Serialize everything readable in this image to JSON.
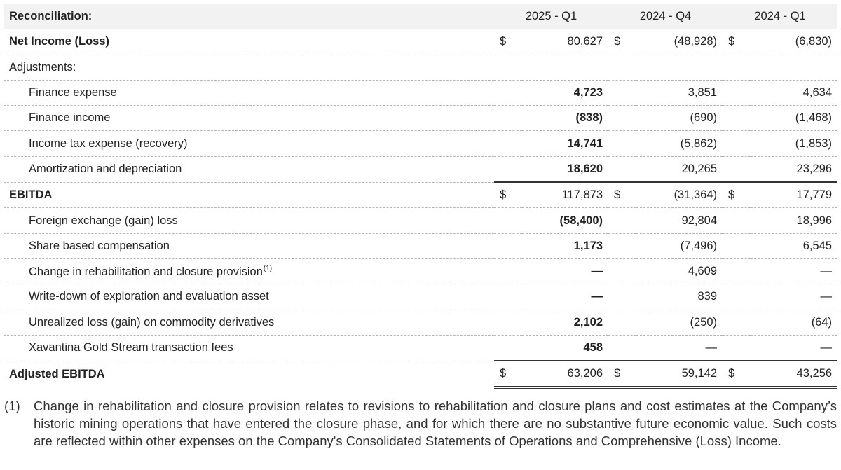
{
  "table": {
    "header": {
      "label": "Reconciliation:",
      "columns": [
        "2025 - Q1",
        "2024 - Q4",
        "2024 - Q1"
      ]
    },
    "currency_symbol": "$",
    "rows": [
      {
        "label": "Net Income (Loss)",
        "values": [
          "80,627",
          "(48,928)",
          "(6,830)"
        ]
      },
      {
        "label": "Adjustments:"
      },
      {
        "label": "Finance expense",
        "values": [
          "4,723",
          "3,851",
          "4,634"
        ]
      },
      {
        "label": "Finance income",
        "values": [
          "(838)",
          "(690)",
          "(1,468)"
        ]
      },
      {
        "label": "Income tax expense (recovery)",
        "values": [
          "14,741",
          "(5,862)",
          "(1,853)"
        ]
      },
      {
        "label": "Amortization and depreciation",
        "values": [
          "18,620",
          "20,265",
          "23,296"
        ]
      },
      {
        "label": "EBITDA",
        "values": [
          "117,873",
          "(31,364)",
          "17,779"
        ]
      },
      {
        "label": "Foreign exchange (gain) loss",
        "values": [
          "(58,400)",
          "92,804",
          "18,996"
        ]
      },
      {
        "label": "Share based compensation",
        "values": [
          "1,173",
          "(7,496)",
          "6,545"
        ]
      },
      {
        "label": "Change in rehabilitation and closure provision",
        "footnote": "(1)",
        "values": [
          "—",
          "4,609",
          "—"
        ]
      },
      {
        "label": "Write-down of exploration and evaluation asset",
        "values": [
          "—",
          "839",
          "—"
        ]
      },
      {
        "label": "Unrealized loss (gain) on commodity derivatives",
        "values": [
          "2,102",
          "(250)",
          "(64)"
        ]
      },
      {
        "label": "Xavantina Gold Stream transaction fees",
        "values": [
          "458",
          "—",
          "—"
        ]
      },
      {
        "label": "Adjusted EBITDA",
        "values": [
          "63,206",
          "59,142",
          "43,256"
        ]
      }
    ]
  },
  "footnote": {
    "marker": "(1)",
    "text": "Change in rehabilitation and closure provision relates to revisions to rehabilitation and closure plans and cost estimates at the Company’s historic mining operations that have entered the closure phase, and for which there are no substantive future economic value. Such costs are reflected within other expenses on the Company's Consolidated Statements of Operations and Comprehensive (Loss) Income."
  }
}
